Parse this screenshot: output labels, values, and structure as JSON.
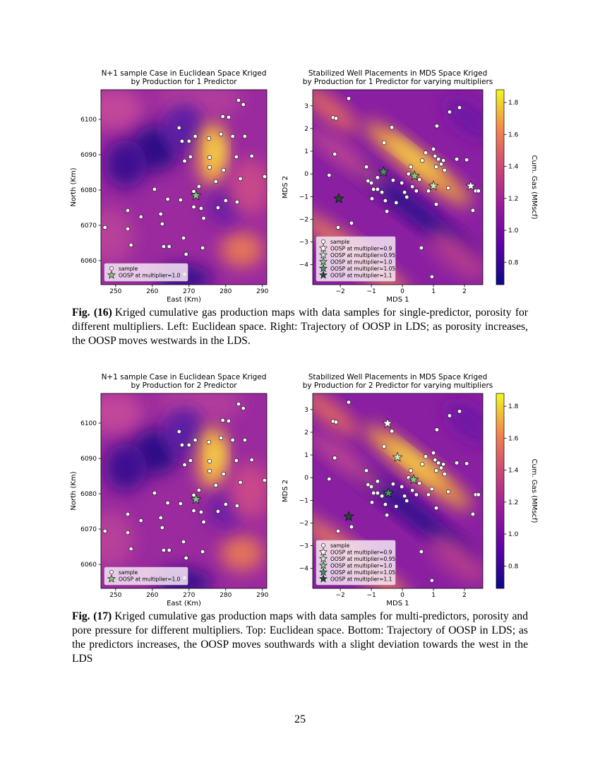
{
  "chart_data": [
    {
      "type": "scatter",
      "title": [
        "N+1 sample Case in Euclidean Space Kriged",
        "by Production for 1 Predictor"
      ],
      "xlabel": "East (Km)",
      "ylabel": "North (Km)",
      "xlim": [
        246,
        291.2
      ],
      "ylim": [
        6053.2,
        6108.4
      ],
      "xticks": [
        250,
        260,
        270,
        280,
        290
      ],
      "yticks": [
        6060,
        6070,
        6080,
        6090,
        6100
      ],
      "legend": "lower left",
      "series": [
        {
          "name": "sample",
          "color": "#ffffff",
          "marker": "circle",
          "x": [
            247.1,
            253.3,
            253.3,
            254.2,
            256.9,
            260.6,
            262.3,
            262.7,
            263.1,
            264.6,
            264.2,
            267.3,
            268.1,
            270.0,
            268.8,
            267.7,
            268.5,
            269.2,
            268.8,
            270.4,
            271.3,
            271.3,
            271.7,
            272.7,
            273.3,
            274.0,
            275.4,
            275.6,
            275.6,
            277.3,
            277.9,
            278.7,
            279.2,
            279.4,
            280.0,
            280.8,
            281.9,
            282.9,
            283.1,
            284.0,
            283.5,
            284.8,
            285.2,
            287.1,
            290.6,
            273.7
          ],
          "values": [
            6069.4,
            6074.2,
            6069.0,
            6064.4,
            6072.4,
            6080.2,
            6073.2,
            6070.4,
            6064.0,
            6064.0,
            6077.4,
            6097.6,
            6093.8,
            6093.8,
            6088.2,
            6077.2,
            6066.4,
            6061.8,
            6056.2,
            6089.4,
            6079.6,
            6075.2,
            6095.2,
            6081.0,
            6074.8,
            6072.0,
            6094.6,
            6089.2,
            6086.4,
            6082.4,
            6075.0,
            6095.8,
            6100.8,
            6085.6,
            6077.0,
            6100.6,
            6095.2,
            6089.4,
            6076.6,
            6083.2,
            6105.4,
            6104.2,
            6095.2,
            6089.6,
            6083.8,
            6063.6
          ]
        },
        {
          "name": "OOSP at multiplier=1.0",
          "color": "#7fc97f",
          "marker": "star",
          "x": [
            271.9
          ],
          "values": [
            6078.4
          ]
        }
      ]
    },
    {
      "type": "scatter",
      "title": [
        "Stabilized Well Placements in MDS Space Kriged",
        "by Production for 1 Predictor for varying multipliers"
      ],
      "xlabel": "MDS 1",
      "ylabel": "MDS 2",
      "xlim": [
        -2.89,
        2.59
      ],
      "ylim": [
        -4.88,
        3.71
      ],
      "xticks": [
        {
          "value": -2,
          "label": "−2"
        },
        {
          "value": -1,
          "label": "−1"
        },
        0,
        1,
        2
      ],
      "yticks": [
        {
          "value": -4,
          "label": "−4"
        },
        {
          "value": -3,
          "label": "−3"
        },
        {
          "value": -2,
          "label": "−2"
        },
        {
          "value": -1,
          "label": "−1"
        },
        0,
        1,
        2,
        3
      ],
      "legend": "lower left",
      "colorbar": {
        "label": "Cum. Gas (MMscf)",
        "lim": [
          0.66,
          1.88
        ],
        "ticks": [
          0.8,
          {
            "value": 1,
            "label": "1.0"
          },
          1.2,
          1.4,
          1.6,
          1.8
        ],
        "colormap": "plasma"
      },
      "series": [
        {
          "name": "sample",
          "color": "#ffffff",
          "marker": "circle",
          "x": [
            -2.36,
            -2.23,
            -2.14,
            -2.18,
            -2.07,
            -1.73,
            -1.64,
            -1.16,
            -1.11,
            -1.0,
            -0.93,
            -0.98,
            -0.8,
            -0.8,
            -0.66,
            -0.55,
            -0.5,
            -0.59,
            -0.34,
            -0.3,
            -0.2,
            -0.02,
            0.07,
            0.14,
            0.2,
            0.27,
            0.32,
            0.45,
            0.55,
            0.61,
            0.64,
            0.75,
            0.84,
            0.95,
            0.95,
            1.0,
            1.05,
            1.09,
            1.09,
            1.11,
            1.16,
            1.25,
            1.32,
            1.36,
            1.48,
            1.52,
            1.75,
            1.84,
            2.07,
            2.27,
            2.36,
            2.45
          ],
          "values": [
            -0.06,
            2.48,
            2.45,
            0.87,
            -2.36,
            3.32,
            -2.17,
            0.31,
            -0.31,
            -0.4,
            -0.68,
            -1.09,
            -0.16,
            -0.68,
            -0.81,
            -1.18,
            -1.65,
            1.37,
            2.05,
            -0.28,
            -1.27,
            -0.4,
            -0.81,
            -1.02,
            0.0,
            0.31,
            -0.56,
            -0.75,
            -0.25,
            -3.26,
            0.59,
            0.93,
            -0.75,
            -0.5,
            -4.53,
            1.09,
            0.78,
            0.31,
            -1.34,
            2.11,
            0.65,
            0.43,
            0.59,
            0.16,
            -0.62,
            2.73,
            0.65,
            2.92,
            0.62,
            -1.61,
            -0.75,
            -0.75
          ]
        },
        {
          "name": "OOSP at multiplier=0.9",
          "color": "#ffffff",
          "marker": "star",
          "x": [
            2.2
          ],
          "values": [
            -0.53
          ]
        },
        {
          "name": "OOSP at multiplier=0.95",
          "color": "#c7e9c0",
          "marker": "star",
          "x": [
            1.0
          ],
          "values": [
            -0.53
          ]
        },
        {
          "name": "OOSP at multiplier=1.0",
          "color": "#7fc97f",
          "marker": "star",
          "x": [
            0.39
          ],
          "values": [
            -0.09
          ]
        },
        {
          "name": "OOSP at multiplier=1.05",
          "color": "#3a9b5c",
          "marker": "star",
          "x": [
            -0.61
          ],
          "values": [
            0.09
          ]
        },
        {
          "name": "OOSP at multiplier=1.1",
          "color": "#1b4d2e",
          "marker": "star",
          "x": [
            -2.05
          ],
          "values": [
            -1.09
          ]
        }
      ]
    },
    {
      "type": "scatter",
      "title": [
        "N+1 sample Case in Euclidean Space Kriged",
        "by Production for 2 Predictor"
      ],
      "xlabel": "East (Km)",
      "ylabel": "North (Km)",
      "xlim": [
        246,
        291.2
      ],
      "ylim": [
        6053.2,
        6108.4
      ],
      "xticks": [
        250,
        260,
        270,
        280,
        290
      ],
      "yticks": [
        6060,
        6070,
        6080,
        6090,
        6100
      ],
      "legend": "lower left",
      "series": [
        {
          "name": "sample",
          "color": "#ffffff",
          "marker": "circle",
          "x": [
            247.1,
            253.3,
            253.3,
            254.2,
            256.9,
            260.6,
            262.3,
            262.7,
            263.1,
            264.6,
            264.2,
            267.3,
            268.1,
            270.0,
            268.8,
            267.7,
            268.5,
            269.2,
            268.8,
            270.4,
            271.3,
            271.3,
            271.7,
            272.7,
            273.3,
            274.0,
            275.4,
            275.6,
            275.6,
            277.3,
            277.9,
            278.7,
            279.2,
            279.4,
            280.0,
            280.8,
            281.9,
            282.9,
            283.1,
            284.0,
            283.5,
            284.8,
            285.2,
            287.1,
            290.6,
            273.7
          ],
          "values": [
            6069.4,
            6074.2,
            6069.0,
            6064.4,
            6072.4,
            6080.2,
            6073.2,
            6070.4,
            6064.0,
            6064.0,
            6077.4,
            6097.6,
            6093.8,
            6093.8,
            6088.2,
            6077.2,
            6066.4,
            6061.8,
            6056.2,
            6089.4,
            6079.6,
            6075.2,
            6095.2,
            6081.0,
            6074.8,
            6072.0,
            6094.6,
            6089.2,
            6086.4,
            6082.4,
            6075.0,
            6095.8,
            6100.8,
            6085.6,
            6077.0,
            6100.6,
            6095.2,
            6089.4,
            6076.6,
            6083.2,
            6105.4,
            6104.2,
            6095.2,
            6089.6,
            6083.8,
            6063.6
          ]
        },
        {
          "name": "OOSP at multiplier=1.0",
          "color": "#7fc97f",
          "marker": "star",
          "x": [
            271.9
          ],
          "values": [
            6078.4
          ]
        }
      ]
    },
    {
      "type": "scatter",
      "title": [
        "Stabilized Well Placements in MDS Space Kriged",
        "by Production for 2 Predictor for varying multipliers"
      ],
      "xlabel": "MDS 1",
      "ylabel": "MDS 2",
      "xlim": [
        -2.89,
        2.59
      ],
      "ylim": [
        -4.88,
        3.71
      ],
      "xticks": [
        {
          "value": -2,
          "label": "−2"
        },
        {
          "value": -1,
          "label": "−1"
        },
        0,
        1,
        2
      ],
      "yticks": [
        {
          "value": -4,
          "label": "−4"
        },
        {
          "value": -3,
          "label": "−3"
        },
        {
          "value": -2,
          "label": "−2"
        },
        {
          "value": -1,
          "label": "−1"
        },
        0,
        1,
        2,
        3
      ],
      "legend": "lower left",
      "colorbar": {
        "label": "Cum. Gas (MMscf)",
        "lim": [
          0.66,
          1.88
        ],
        "ticks": [
          0.8,
          {
            "value": 1,
            "label": "1.0"
          },
          1.2,
          1.4,
          1.6,
          1.8
        ],
        "colormap": "plasma"
      },
      "series": [
        {
          "name": "sample",
          "color": "#ffffff",
          "marker": "circle",
          "x": [
            -2.36,
            -2.23,
            -2.14,
            -2.18,
            -2.07,
            -1.73,
            -1.64,
            -1.16,
            -1.11,
            -1.0,
            -0.93,
            -0.98,
            -0.8,
            -0.8,
            -0.66,
            -0.55,
            -0.5,
            -0.59,
            -0.34,
            -0.3,
            -0.2,
            -0.02,
            0.07,
            0.14,
            0.2,
            0.27,
            0.32,
            0.45,
            0.55,
            0.61,
            0.64,
            0.75,
            0.84,
            0.95,
            0.95,
            1.0,
            1.05,
            1.09,
            1.09,
            1.11,
            1.16,
            1.25,
            1.32,
            1.36,
            1.48,
            1.52,
            1.75,
            1.84,
            2.07,
            2.27,
            2.36,
            2.45
          ],
          "values": [
            -0.06,
            2.48,
            2.45,
            0.87,
            -2.36,
            3.32,
            -2.17,
            0.31,
            -0.31,
            -0.4,
            -0.68,
            -1.09,
            -0.16,
            -0.68,
            -0.81,
            -1.18,
            -1.65,
            1.37,
            2.05,
            -0.28,
            -1.27,
            -0.4,
            -0.81,
            -1.02,
            0.0,
            0.31,
            -0.56,
            -0.75,
            -0.25,
            -3.26,
            0.59,
            0.93,
            -0.75,
            -0.5,
            -4.53,
            1.09,
            0.78,
            0.31,
            -1.34,
            2.11,
            0.65,
            0.43,
            0.59,
            0.16,
            -0.62,
            2.73,
            0.65,
            2.92,
            0.62,
            -1.61,
            -0.75,
            -0.75
          ]
        },
        {
          "name": "OOSP at multiplier=0.9",
          "color": "#ffffff",
          "marker": "star",
          "x": [
            -0.48
          ],
          "values": [
            2.39
          ]
        },
        {
          "name": "OOSP at multiplier=0.95",
          "color": "#c7e9c0",
          "marker": "star",
          "x": [
            -0.16
          ],
          "values": [
            0.9
          ]
        },
        {
          "name": "OOSP at multiplier=1.0",
          "color": "#7fc97f",
          "marker": "star",
          "x": [
            0.36
          ],
          "values": [
            -0.09
          ]
        },
        {
          "name": "OOSP at multiplier=1.05",
          "color": "#3a9b5c",
          "marker": "star",
          "x": [
            -0.45
          ],
          "values": [
            -0.68
          ]
        },
        {
          "name": "OOSP at multiplier=1.1",
          "color": "#1b4d2e",
          "marker": "star",
          "x": [
            -1.73
          ],
          "values": [
            -1.71
          ]
        }
      ]
    }
  ],
  "captions": [
    {
      "label": "Fig. (16)",
      "text": "Kriged cumulative gas production maps with data samples for single-predictor, porosity for different multipliers. Left: Euclidean space. Right: Trajectory of OOSP in LDS; as porosity increases, the OOSP moves westwards in the LDS."
    },
    {
      "label": "Fig. (17)",
      "text": "Kriged cumulative gas production maps with data samples for multi-predictors, porosity and pore pressure for different multipliers. Top: Euclidean space. Bottom: Trajectory of OOSP in LDS; as the predictors increases, the OOSP moves southwards with a slight deviation towards the west in the LDS"
    }
  ],
  "page_number": "25"
}
